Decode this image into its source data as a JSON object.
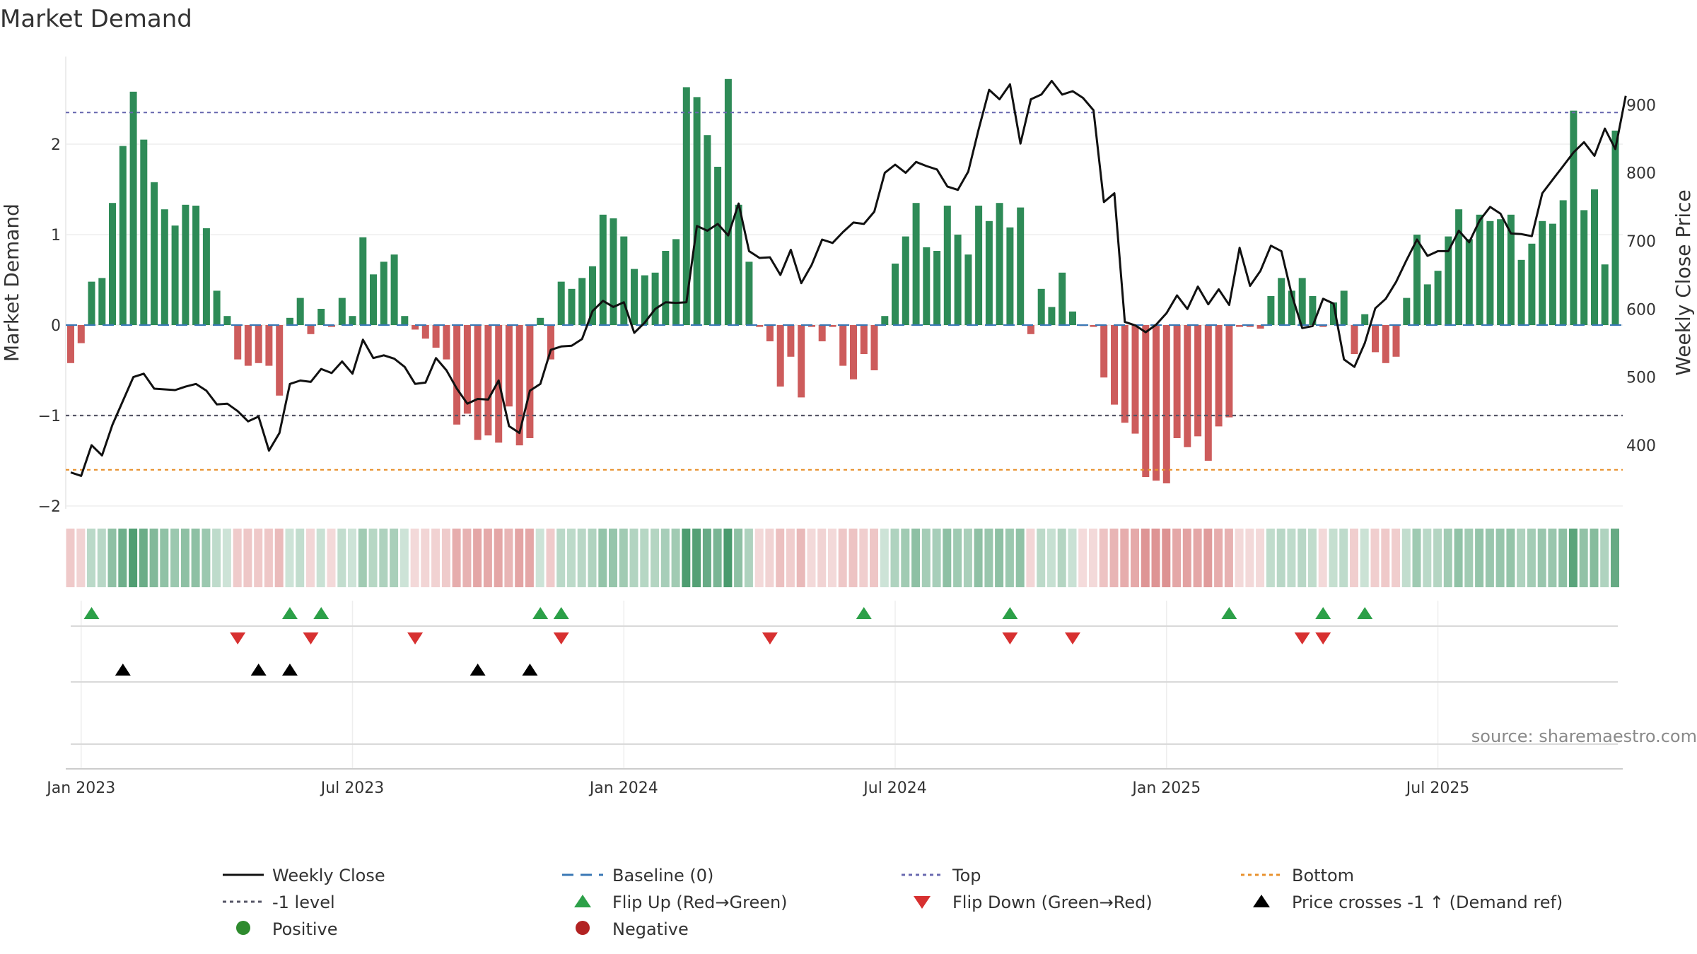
{
  "chart_data": {
    "type": "bar",
    "title": "Market Demand",
    "ylabel": "Market Demand",
    "y2label": "Weekly Close Price",
    "ylim": [
      -2.0,
      2.8
    ],
    "y2lim": [
      325,
      960
    ],
    "yticks": [
      {
        "v": -2,
        "label": "−2"
      },
      {
        "v": -1,
        "label": "−1"
      },
      {
        "v": 0,
        "label": "0"
      },
      {
        "v": 1,
        "label": "1"
      },
      {
        "v": 2,
        "label": "2"
      }
    ],
    "y2ticks": [
      {
        "v": 400,
        "label": "400"
      },
      {
        "v": 500,
        "label": "500"
      },
      {
        "v": 600,
        "label": "600"
      },
      {
        "v": 700,
        "label": "700"
      },
      {
        "v": 800,
        "label": "800"
      },
      {
        "v": 900,
        "label": "900"
      }
    ],
    "xticks": [
      {
        "i": 1,
        "label": "Jan 2023"
      },
      {
        "i": 27,
        "label": "Jul 2023"
      },
      {
        "i": 53,
        "label": "Jan 2024"
      },
      {
        "i": 79,
        "label": "Jul 2024"
      },
      {
        "i": 105,
        "label": "Jan 2025"
      },
      {
        "i": 131,
        "label": "Jul 2025"
      }
    ],
    "demand": [
      -0.42,
      -0.2,
      0.48,
      0.52,
      1.35,
      1.98,
      2.58,
      2.05,
      1.58,
      1.28,
      1.1,
      1.33,
      1.32,
      1.07,
      0.38,
      0.1,
      -0.38,
      -0.45,
      -0.42,
      -0.45,
      -0.78,
      0.08,
      0.3,
      -0.1,
      0.18,
      -0.02,
      0.3,
      0.1,
      0.97,
      0.56,
      0.7,
      0.78,
      0.1,
      -0.05,
      -0.15,
      -0.25,
      -0.38,
      -1.1,
      -0.98,
      -1.27,
      -1.22,
      -1.3,
      -0.9,
      -1.33,
      -1.25,
      0.08,
      -0.38,
      0.48,
      0.4,
      0.52,
      0.65,
      1.22,
      1.18,
      0.98,
      0.62,
      0.55,
      0.58,
      0.82,
      0.95,
      2.63,
      2.52,
      2.1,
      1.75,
      2.72,
      1.33,
      0.7,
      -0.02,
      -0.18,
      -0.68,
      -0.35,
      -0.8,
      -0.02,
      -0.18,
      -0.02,
      -0.45,
      -0.6,
      -0.32,
      -0.5,
      0.1,
      0.68,
      0.98,
      1.35,
      0.86,
      0.82,
      1.32,
      1.0,
      0.78,
      1.32,
      1.15,
      1.35,
      1.08,
      1.3,
      -0.1,
      0.4,
      0.2,
      0.58,
      0.15,
      -0.01,
      -0.02,
      -0.58,
      -0.88,
      -1.08,
      -1.2,
      -1.68,
      -1.72,
      -1.75,
      -1.25,
      -1.35,
      -1.23,
      -1.5,
      -1.12,
      -1.02,
      -0.02,
      -0.02,
      -0.04,
      0.32,
      0.52,
      0.38,
      0.52,
      0.32,
      -0.02,
      0.25,
      0.38,
      -0.32,
      0.12,
      -0.3,
      -0.42,
      -0.35,
      0.3,
      1.0,
      0.45,
      0.6,
      0.98,
      1.28,
      0.95,
      1.22,
      1.15,
      1.17,
      1.22,
      0.72,
      0.9,
      1.15,
      1.12,
      1.38,
      2.37,
      1.27,
      1.5,
      0.67,
      2.15
    ],
    "price": [
      360,
      355,
      400,
      385,
      430,
      465,
      500,
      505,
      483,
      482,
      481,
      486,
      490,
      480,
      460,
      461,
      450,
      435,
      442,
      392,
      418,
      490,
      495,
      493,
      512,
      506,
      523,
      505,
      555,
      528,
      532,
      527,
      515,
      490,
      492,
      528,
      510,
      483,
      461,
      468,
      467,
      495,
      428,
      418,
      480,
      490,
      540,
      545,
      546,
      556,
      597,
      612,
      603,
      610,
      565,
      580,
      600,
      610,
      609,
      610,
      722,
      715,
      725,
      708,
      755,
      685,
      675,
      676,
      650,
      687,
      638,
      665,
      702,
      697,
      713,
      727,
      725,
      743,
      800,
      812,
      800,
      816,
      810,
      805,
      780,
      775,
      802,
      864,
      922,
      908,
      930,
      843,
      908,
      915,
      935,
      915,
      920,
      910,
      892,
      757,
      770,
      581,
      576,
      566,
      577,
      594,
      620,
      600,
      633,
      607,
      629,
      606,
      690,
      634,
      656,
      693,
      685,
      621,
      572,
      575,
      615,
      608,
      526,
      515,
      550,
      601,
      615,
      640,
      672,
      702,
      678,
      685,
      685,
      715,
      698,
      730,
      750,
      740,
      711,
      710,
      707,
      770,
      790,
      810,
      830,
      845,
      825,
      865,
      835,
      913
    ],
    "baseline": 0,
    "top": 2.35,
    "minus1": -1,
    "bottom": -1.6,
    "flip_up": [
      2,
      21,
      24,
      45,
      47,
      76,
      90,
      111,
      120,
      124
    ],
    "flip_down": [
      16,
      23,
      33,
      47,
      67,
      90,
      96,
      118,
      120
    ],
    "price_cross": [
      5,
      18,
      21,
      39,
      44
    ],
    "heat_min": -1.75,
    "heat_max": 2.72
  },
  "colors": {
    "positive_bar": "#2e8b57",
    "negative_bar": "#cd5c5c",
    "price_line": "#111111",
    "baseline": "#3a78b5",
    "top": "#6a6ab0",
    "minus1": "#555566",
    "bottom": "#e8912d",
    "flip_up": "#2ca048",
    "flip_down": "#d73030",
    "price_cross": "#000000",
    "positive_dot": "#2e8b2e",
    "negative_dot": "#b22222"
  },
  "legend": {
    "weekly_close": "Weekly Close",
    "baseline": "Baseline (0)",
    "top": "Top",
    "bottom": "Bottom",
    "minus1": "-1 level",
    "flip_up": "Flip Up (Red→Green)",
    "flip_down": "Flip Down (Green→Red)",
    "price_cross": "Price crosses -1 ↑ (Demand ref)",
    "positive": "Positive",
    "negative": "Negative"
  },
  "source": "source: sharemaestro.com"
}
